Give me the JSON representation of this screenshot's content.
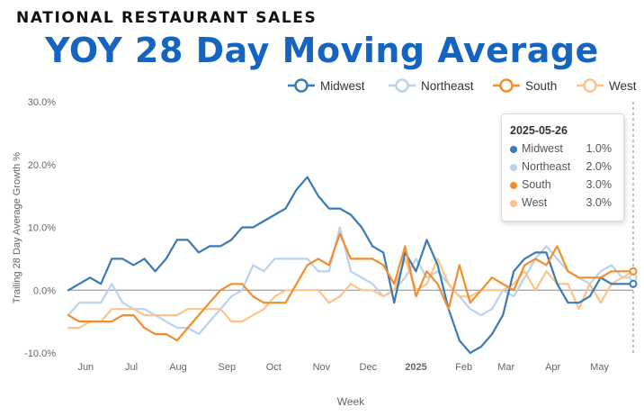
{
  "header": {
    "supertitle": "NATIONAL RESTAURANT SALES",
    "title": "YOY 28 Day Moving Average"
  },
  "tooltip": {
    "date": "2025-05-26",
    "rows": [
      {
        "name": "Midwest",
        "value": "1.0%",
        "color": "#3a7bb5"
      },
      {
        "name": "Northeast",
        "value": "2.0%",
        "color": "#b9d3ee"
      },
      {
        "name": "South",
        "value": "3.0%",
        "color": "#f28e2b"
      },
      {
        "name": "West",
        "value": "3.0%",
        "color": "#fcc48a"
      }
    ]
  },
  "chart_data": {
    "type": "line",
    "title": "YOY 28 Day Moving Average",
    "xlabel": "Week",
    "ylabel": "Trailing 28 Day Average Growth %",
    "ylim": [
      -10,
      30
    ],
    "yticks": [
      -10,
      0,
      10,
      20,
      30
    ],
    "ytick_labels": [
      "-10.0%",
      "0.0%",
      "10.0%",
      "20.0%",
      "30.0%"
    ],
    "xlim": [
      0,
      52
    ],
    "xticks": [
      {
        "label": "Jun",
        "pos": 1.6,
        "bold": false
      },
      {
        "label": "Jul",
        "pos": 5.8,
        "bold": false
      },
      {
        "label": "Aug",
        "pos": 10.1,
        "bold": false
      },
      {
        "label": "Sep",
        "pos": 14.6,
        "bold": false
      },
      {
        "label": "Oct",
        "pos": 18.9,
        "bold": false
      },
      {
        "label": "Nov",
        "pos": 23.3,
        "bold": false
      },
      {
        "label": "Dec",
        "pos": 27.6,
        "bold": false
      },
      {
        "label": "2025",
        "pos": 32.0,
        "bold": true
      },
      {
        "label": "Feb",
        "pos": 36.4,
        "bold": false
      },
      {
        "label": "Mar",
        "pos": 40.3,
        "bold": false
      },
      {
        "label": "Apr",
        "pos": 44.6,
        "bold": false
      },
      {
        "label": "May",
        "pos": 48.9,
        "bold": false
      }
    ],
    "grid": false,
    "legend_position": "top-right",
    "hover_index": 52,
    "x": [
      0,
      1,
      2,
      3,
      4,
      5,
      6,
      7,
      8,
      9,
      10,
      11,
      12,
      13,
      14,
      15,
      16,
      17,
      18,
      19,
      20,
      21,
      22,
      23,
      24,
      25,
      26,
      27,
      28,
      29,
      30,
      31,
      32,
      33,
      34,
      35,
      36,
      37,
      38,
      39,
      40,
      41,
      42,
      43,
      44,
      45,
      46,
      47,
      48,
      49,
      50,
      51,
      52
    ],
    "series": [
      {
        "name": "Midwest",
        "color": "#3a7bb5",
        "values": [
          0,
          1,
          2,
          1,
          5,
          5,
          4,
          5,
          3,
          5,
          8,
          8,
          6,
          7,
          7,
          8,
          10,
          10,
          11,
          12,
          13,
          16,
          18,
          15,
          13,
          13,
          12,
          10,
          7,
          6,
          -2,
          6,
          3,
          8,
          4,
          -3,
          -8,
          -10,
          -9,
          -7,
          -4,
          3,
          5,
          6,
          6,
          1,
          -2,
          -2,
          -1,
          2,
          1,
          1,
          1
        ]
      },
      {
        "name": "Northeast",
        "color": "#b9d3ee",
        "values": [
          -4,
          -2,
          -2,
          -2,
          1,
          -2,
          -3,
          -3,
          -4,
          -5,
          -6,
          -6,
          -7,
          -5,
          -3,
          -1,
          0,
          4,
          3,
          5,
          5,
          5,
          5,
          3,
          3,
          10,
          3,
          2,
          1,
          -1,
          0,
          2,
          5,
          2,
          3,
          1,
          -1,
          -3,
          -4,
          -3,
          0,
          -1,
          2,
          5,
          7,
          5,
          3,
          2,
          1,
          3,
          4,
          2,
          2
        ]
      },
      {
        "name": "South",
        "color": "#f28e2b",
        "values": [
          -4,
          -5,
          -5,
          -5,
          -5,
          -4,
          -4,
          -6,
          -7,
          -7,
          -8,
          -6,
          -4,
          -2,
          0,
          1,
          1,
          -1,
          -2,
          -2,
          -2,
          1,
          4,
          5,
          4,
          9,
          5,
          5,
          5,
          4,
          1,
          7,
          -1,
          3,
          1,
          -3,
          4,
          -2,
          0,
          2,
          1,
          0,
          4,
          5,
          4,
          7,
          3,
          2,
          2,
          2,
          3,
          3,
          3
        ]
      },
      {
        "name": "West",
        "color": "#fcc48a",
        "values": [
          -6,
          -6,
          -5,
          -5,
          -3,
          -3,
          -3,
          -4,
          -4,
          -4,
          -4,
          -3,
          -3,
          -3,
          -3,
          -5,
          -5,
          -4,
          -3,
          -1,
          0,
          0,
          0,
          0,
          -2,
          -1,
          1,
          0,
          0,
          -1,
          0,
          5,
          0,
          1,
          5,
          1,
          -1,
          -1,
          0,
          0,
          0,
          1,
          3,
          0,
          3,
          1,
          1,
          -3,
          1,
          -2,
          1,
          2,
          3
        ]
      }
    ]
  }
}
